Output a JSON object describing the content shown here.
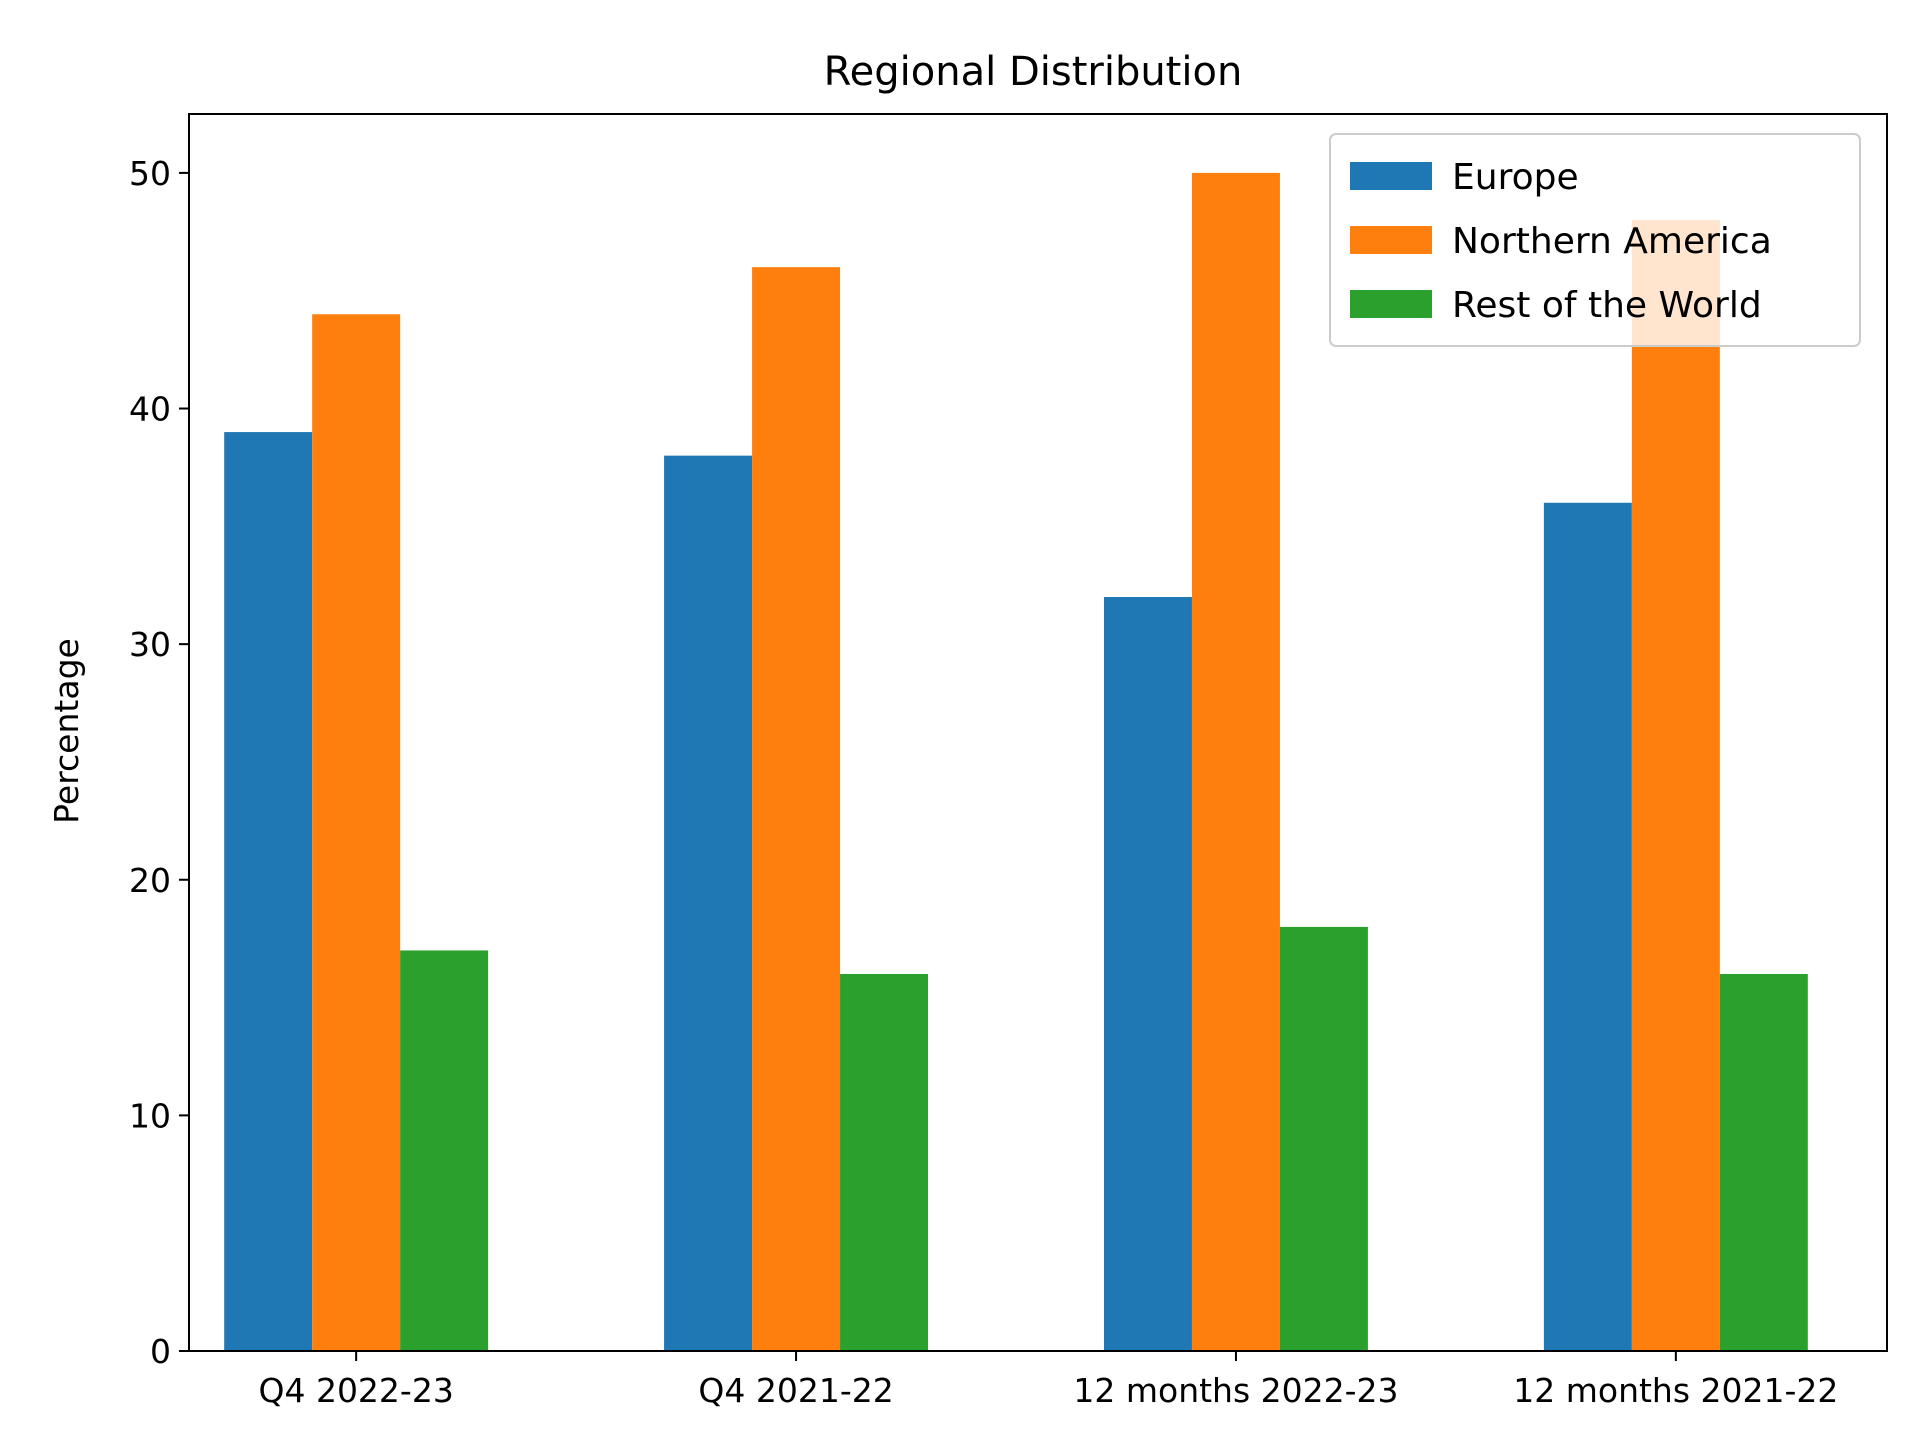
{
  "chart_data": {
    "type": "bar",
    "title": "Regional Distribution",
    "xlabel": "",
    "ylabel": "Percentage",
    "categories": [
      "Q4 2022-23",
      "Q4 2021-22",
      "12 months 2022-23",
      "12 months 2021-22"
    ],
    "series": [
      {
        "name": "Europe",
        "color": "#1f77b4",
        "values": [
          39,
          38,
          32,
          36
        ]
      },
      {
        "name": "Northern America",
        "color": "#ff7f0e",
        "values": [
          44,
          46,
          50,
          48
        ]
      },
      {
        "name": "Rest of the World",
        "color": "#2ca02c",
        "values": [
          17,
          16,
          18,
          16
        ]
      }
    ],
    "ylim": [
      0,
      52.5
    ],
    "yticks": [
      0,
      10,
      20,
      30,
      40,
      50
    ],
    "grid": false,
    "legend_position": "top-right"
  }
}
